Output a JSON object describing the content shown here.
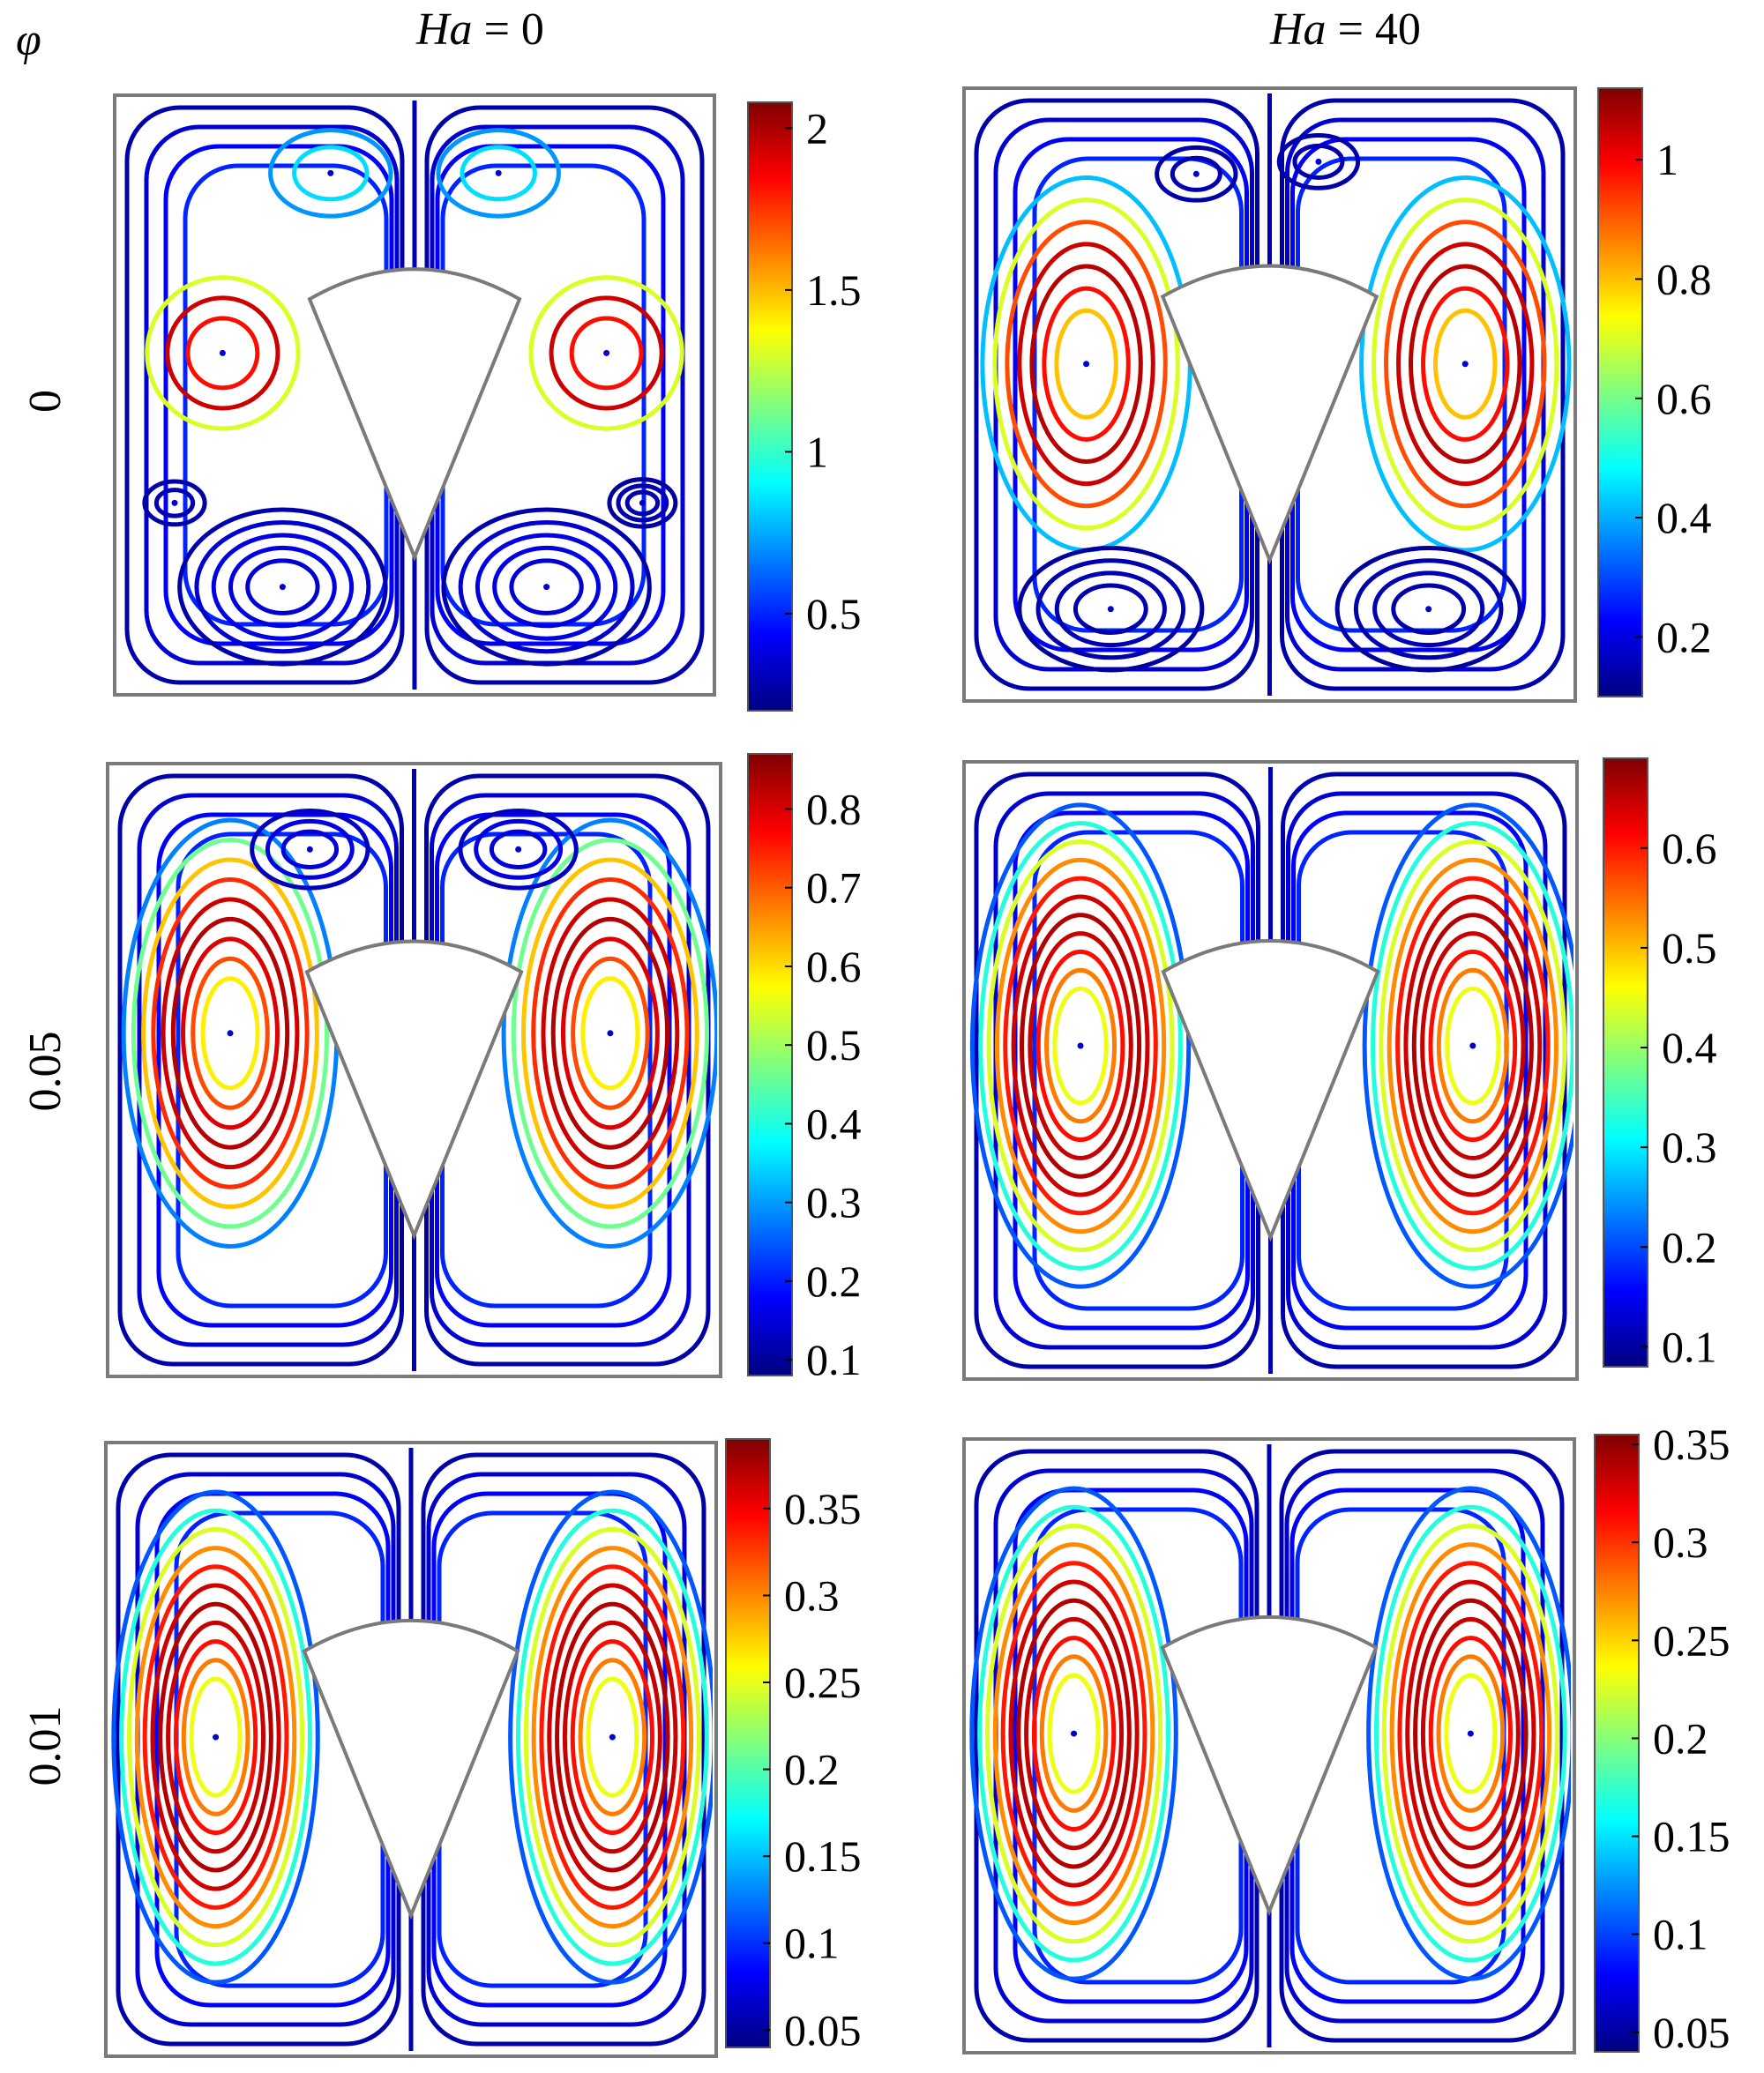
{
  "axis_symbol": "φ",
  "column_headers": [
    {
      "var": "Ha",
      "eq": " = 0"
    },
    {
      "var": "Ha",
      "eq": " = 40"
    }
  ],
  "row_labels": [
    "0",
    "0.05",
    "0.01"
  ],
  "colormap": [
    "#00007f",
    "#0000ff",
    "#007fff",
    "#00ffff",
    "#7fff7f",
    "#ffff00",
    "#ff7f00",
    "#ff0000",
    "#7f0000"
  ],
  "outline_color": "#7a7a7a",
  "panels": [
    {
      "row": 0,
      "col": 0,
      "scale_min": 0.2,
      "scale_max": 2.08,
      "ticks": [
        "0.5",
        "1",
        "1.5",
        "2"
      ],
      "tick_values": [
        0.5,
        1,
        1.5,
        2
      ]
    },
    {
      "row": 0,
      "col": 1,
      "scale_min": 0.1,
      "scale_max": 1.12,
      "ticks": [
        "0.2",
        "0.4",
        "0.6",
        "0.8",
        "1"
      ],
      "tick_values": [
        0.2,
        0.4,
        0.6,
        0.8,
        1
      ]
    },
    {
      "row": 1,
      "col": 0,
      "scale_min": 0.08,
      "scale_max": 0.87,
      "ticks": [
        "0.1",
        "0.2",
        "0.3",
        "0.4",
        "0.5",
        "0.6",
        "0.7",
        "0.8"
      ],
      "tick_values": [
        0.1,
        0.2,
        0.3,
        0.4,
        0.5,
        0.6,
        0.7,
        0.8
      ]
    },
    {
      "row": 1,
      "col": 1,
      "scale_min": 0.08,
      "scale_max": 0.69,
      "ticks": [
        "0.1",
        "0.2",
        "0.3",
        "0.4",
        "0.5",
        "0.6"
      ],
      "tick_values": [
        0.1,
        0.2,
        0.3,
        0.4,
        0.5,
        0.6
      ]
    },
    {
      "row": 2,
      "col": 0,
      "scale_min": 0.04,
      "scale_max": 0.39,
      "ticks": [
        "0.05",
        "0.1",
        "0.15",
        "0.2",
        "0.25",
        "0.3",
        "0.35"
      ],
      "tick_values": [
        0.05,
        0.1,
        0.15,
        0.2,
        0.25,
        0.3,
        0.35
      ]
    },
    {
      "row": 2,
      "col": 1,
      "scale_min": 0.04,
      "scale_max": 0.355,
      "ticks": [
        "0.05",
        "0.1",
        "0.15",
        "0.2",
        "0.25",
        "0.3",
        "0.35"
      ],
      "tick_values": [
        0.05,
        0.1,
        0.15,
        0.2,
        0.25,
        0.3,
        0.35
      ]
    }
  ]
}
